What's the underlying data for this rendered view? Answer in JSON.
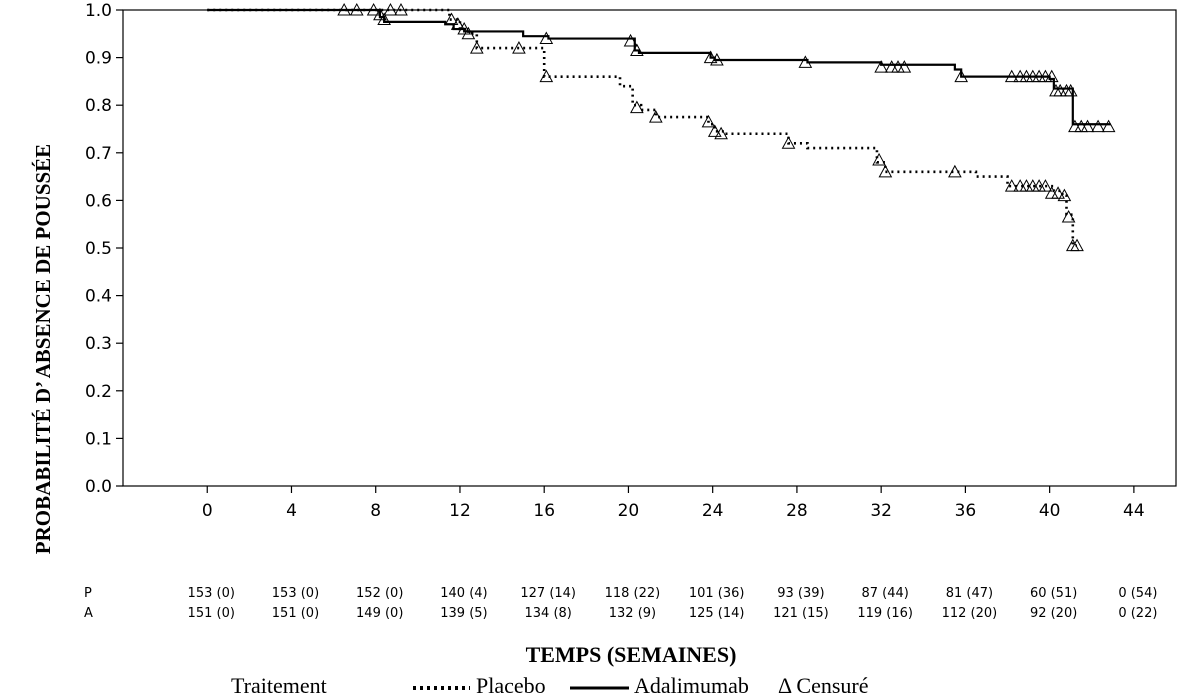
{
  "chart_data": {
    "type": "line",
    "title": "",
    "xlabel": "TEMPS (SEMAINES)",
    "ylabel": "PROBABILITÉ D’ ABSENCE DE POUSSÉE",
    "xlim": [
      -4,
      46
    ],
    "ylim": [
      0.0,
      1.0
    ],
    "x_ticks": [
      0,
      4,
      8,
      12,
      16,
      20,
      24,
      28,
      32,
      36,
      40,
      44
    ],
    "y_ticks": [
      0.0,
      0.1,
      0.2,
      0.3,
      0.4,
      0.5,
      0.6,
      0.7,
      0.8,
      0.9,
      1.0
    ],
    "x_tick_labels": [
      "0",
      "4",
      "8",
      "12",
      "16",
      "20",
      "24",
      "28",
      "32",
      "36",
      "40",
      "44"
    ],
    "y_tick_labels": [
      "0.0",
      "0.1",
      "0.2",
      "0.3",
      "0.4",
      "0.5",
      "0.6",
      "0.7",
      "0.8",
      "0.9",
      "1.0"
    ],
    "grid": false,
    "series": [
      {
        "name": "Placebo",
        "style": "dotted",
        "color": "#000000",
        "steps": [
          [
            0,
            1.0
          ],
          [
            11.5,
            0.98
          ],
          [
            12.0,
            0.96
          ],
          [
            12.4,
            0.95
          ],
          [
            12.8,
            0.92
          ],
          [
            16.0,
            0.86
          ],
          [
            19.6,
            0.84
          ],
          [
            20.2,
            0.8
          ],
          [
            20.6,
            0.79
          ],
          [
            21.3,
            0.775
          ],
          [
            23.8,
            0.76
          ],
          [
            24.1,
            0.745
          ],
          [
            24.6,
            0.74
          ],
          [
            27.6,
            0.72
          ],
          [
            28.5,
            0.71
          ],
          [
            31.8,
            0.68
          ],
          [
            32.2,
            0.66
          ],
          [
            36.5,
            0.65
          ],
          [
            38.0,
            0.63
          ],
          [
            40.2,
            0.62
          ],
          [
            40.6,
            0.61
          ],
          [
            40.8,
            0.57
          ],
          [
            41.1,
            0.505
          ],
          [
            41.3,
            0.505
          ]
        ],
        "censored": [
          [
            6.5,
            1.0
          ],
          [
            7.1,
            1.0
          ],
          [
            7.9,
            1.0
          ],
          [
            8.2,
            0.99
          ],
          [
            8.4,
            0.98
          ],
          [
            8.7,
            1.0
          ],
          [
            9.2,
            1.0
          ],
          [
            11.9,
            0.97
          ],
          [
            12.4,
            0.95
          ],
          [
            12.8,
            0.92
          ],
          [
            14.8,
            0.92
          ],
          [
            16.1,
            0.86
          ],
          [
            20.4,
            0.795
          ],
          [
            21.3,
            0.775
          ],
          [
            23.8,
            0.765
          ],
          [
            24.1,
            0.745
          ],
          [
            24.4,
            0.74
          ],
          [
            27.6,
            0.72
          ],
          [
            31.9,
            0.685
          ],
          [
            32.2,
            0.66
          ],
          [
            35.5,
            0.66
          ],
          [
            38.2,
            0.63
          ],
          [
            38.6,
            0.63
          ],
          [
            38.9,
            0.63
          ],
          [
            39.2,
            0.63
          ],
          [
            39.5,
            0.63
          ],
          [
            39.8,
            0.63
          ],
          [
            40.1,
            0.615
          ],
          [
            40.4,
            0.615
          ],
          [
            40.7,
            0.61
          ],
          [
            40.9,
            0.565
          ],
          [
            41.1,
            0.505
          ],
          [
            41.3,
            0.505
          ]
        ]
      },
      {
        "name": "Adalimumab",
        "style": "solid",
        "color": "#000000",
        "steps": [
          [
            0,
            1.0
          ],
          [
            8.2,
            0.985
          ],
          [
            8.4,
            0.975
          ],
          [
            11.3,
            0.97
          ],
          [
            11.7,
            0.96
          ],
          [
            12.2,
            0.955
          ],
          [
            15.0,
            0.945
          ],
          [
            16.2,
            0.94
          ],
          [
            20.3,
            0.915
          ],
          [
            20.5,
            0.91
          ],
          [
            23.9,
            0.9
          ],
          [
            24.1,
            0.895
          ],
          [
            28.5,
            0.89
          ],
          [
            32.0,
            0.885
          ],
          [
            35.5,
            0.875
          ],
          [
            35.8,
            0.86
          ],
          [
            40.0,
            0.855
          ],
          [
            40.2,
            0.835
          ],
          [
            41.1,
            0.76
          ],
          [
            42.9,
            0.76
          ]
        ],
        "censored": [
          [
            11.6,
            0.98
          ],
          [
            11.9,
            0.97
          ],
          [
            12.2,
            0.96
          ],
          [
            16.1,
            0.94
          ],
          [
            20.1,
            0.935
          ],
          [
            20.4,
            0.915
          ],
          [
            23.9,
            0.9
          ],
          [
            24.2,
            0.895
          ],
          [
            28.4,
            0.89
          ],
          [
            32.0,
            0.88
          ],
          [
            32.5,
            0.88
          ],
          [
            32.8,
            0.88
          ],
          [
            33.1,
            0.88
          ],
          [
            35.8,
            0.86
          ],
          [
            38.2,
            0.86
          ],
          [
            38.6,
            0.86
          ],
          [
            38.9,
            0.86
          ],
          [
            39.2,
            0.86
          ],
          [
            39.5,
            0.86
          ],
          [
            39.8,
            0.86
          ],
          [
            40.1,
            0.86
          ],
          [
            40.3,
            0.83
          ],
          [
            40.5,
            0.83
          ],
          [
            40.8,
            0.83
          ],
          [
            41.0,
            0.83
          ],
          [
            41.2,
            0.755
          ],
          [
            41.5,
            0.755
          ],
          [
            41.8,
            0.755
          ],
          [
            42.3,
            0.755
          ],
          [
            42.8,
            0.755
          ]
        ]
      }
    ],
    "at_risk": {
      "rows": [
        {
          "label": "P",
          "values": [
            "153 (0)",
            "153 (0)",
            "152 (0)",
            "140 (4)",
            "127 (14)",
            "118 (22)",
            "101 (36)",
            "93 (39)",
            "87 (44)",
            "81 (47)",
            "60 (51)",
            "0 (54)"
          ]
        },
        {
          "label": "A",
          "values": [
            "151 (0)",
            "151 (0)",
            "149 (0)",
            "139 (5)",
            "134 (8)",
            "132 (9)",
            "125 (14)",
            "121 (15)",
            "119 (16)",
            "112 (20)",
            "92 (20)",
            "0 (22)"
          ]
        }
      ]
    },
    "legend": {
      "position": "bottom",
      "title": "Traitement",
      "items": [
        {
          "label": "Placebo",
          "style": "dotted"
        },
        {
          "label": "Adalimumab",
          "style": "solid"
        },
        {
          "label": "Δ Censuré",
          "style": "marker"
        }
      ]
    }
  }
}
